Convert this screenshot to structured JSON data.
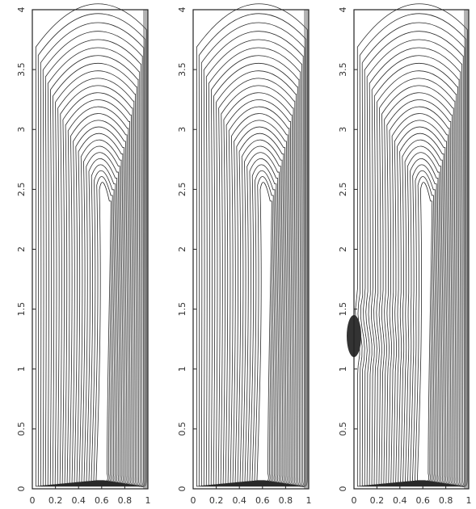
{
  "chart_data": [
    {
      "type": "contour",
      "panel": "left",
      "x_ticks": [
        "0",
        "0.2",
        "0.4",
        "0.6",
        "0.8",
        "1"
      ],
      "y_ticks": [
        "0",
        "0.5",
        "1",
        "1.5",
        "2",
        "2.5",
        "3",
        "3.5",
        "4"
      ],
      "xlim": [
        0,
        1
      ],
      "ylim": [
        0,
        4
      ],
      "n_levels": 26,
      "vortex_center": [
        0.62,
        1.6
      ],
      "grid": false
    },
    {
      "type": "contour",
      "panel": "middle",
      "x_ticks": [
        "0",
        "0.2",
        "0.4",
        "0.6",
        "0.8",
        "1"
      ],
      "y_ticks": [
        "0",
        "0.5",
        "1",
        "1.5",
        "2",
        "2.5",
        "3",
        "3.5",
        "4"
      ],
      "xlim": [
        0,
        1
      ],
      "ylim": [
        0,
        4
      ],
      "n_levels": 26,
      "vortex_center": [
        0.62,
        1.6
      ],
      "grid": false
    },
    {
      "type": "contour",
      "panel": "right",
      "x_ticks": [
        "0",
        "0.2",
        "0.4",
        "0.6",
        "0.8",
        "1"
      ],
      "y_ticks": [
        "0",
        "0.5",
        "1",
        "1.5",
        "2",
        "2.5",
        "3",
        "3.5",
        "4"
      ],
      "xlim": [
        0,
        1
      ],
      "ylim": [
        0,
        4
      ],
      "n_levels": 26,
      "vortex_center": [
        0.62,
        1.6
      ],
      "dark_patch": {
        "x": 0.0,
        "y_range": [
          1.1,
          1.45
        ]
      },
      "grid": false
    }
  ]
}
